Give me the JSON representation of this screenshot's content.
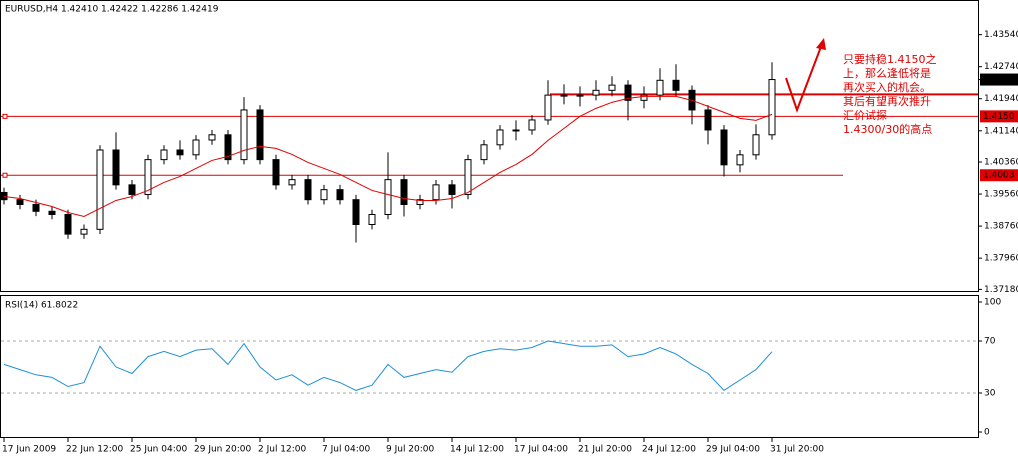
{
  "chart_data": {
    "type": "candlestick",
    "title": "EURUSD,H4  1.42410 1.42422 1.42286 1.42419",
    "categories": [
      "17 Jun 2009",
      null,
      null,
      null,
      "22 Jun 12:00",
      null,
      null,
      null,
      "25 Jun 04:00",
      null,
      null,
      null,
      "29 Jun 20:00",
      null,
      null,
      null,
      "2 Jul 12:00",
      null,
      null,
      null,
      "7 Jul 04:00",
      null,
      null,
      null,
      "9 Jul 20:00",
      null,
      null,
      null,
      "14 Jul 12:00",
      null,
      null,
      null,
      "17 Jul 04:00",
      null,
      null,
      null,
      "21 Jul 20:00",
      null,
      null,
      null,
      "24 Jul 12:00",
      null,
      null,
      null,
      "29 Jul 04:00",
      null,
      null,
      null,
      "31 Jul 20:00"
    ],
    "candles": [
      [
        1.396,
        1.3972,
        1.393,
        1.3942
      ],
      [
        1.3942,
        1.3954,
        1.3918,
        1.393
      ],
      [
        1.393,
        1.3942,
        1.3901,
        1.3913
      ],
      [
        1.3913,
        1.3925,
        1.3893,
        1.3905
      ],
      [
        1.3905,
        1.3917,
        1.3844,
        1.3856
      ],
      [
        1.3856,
        1.388,
        1.3844,
        1.3868
      ],
      [
        1.3868,
        1.4078,
        1.3856,
        1.4066
      ],
      [
        1.4066,
        1.411,
        1.3967,
        1.3979
      ],
      [
        1.3979,
        1.3991,
        1.3943,
        1.3955
      ],
      [
        1.3955,
        1.4054,
        1.3943,
        1.4042
      ],
      [
        1.4042,
        1.4078,
        1.403,
        1.4066
      ],
      [
        1.4066,
        1.409,
        1.4042,
        1.4054
      ],
      [
        1.4054,
        1.4103,
        1.4042,
        1.4091
      ],
      [
        1.4091,
        1.4116,
        1.4079,
        1.4104
      ],
      [
        1.4104,
        1.4116,
        1.403,
        1.4042
      ],
      [
        1.4042,
        1.4198,
        1.403,
        1.4166
      ],
      [
        1.4166,
        1.4178,
        1.403,
        1.4042
      ],
      [
        1.4042,
        1.4054,
        1.3967,
        1.3979
      ],
      [
        1.3979,
        1.4004,
        1.3967,
        1.3992
      ],
      [
        1.3992,
        1.4004,
        1.393,
        1.3942
      ],
      [
        1.3942,
        1.3979,
        1.393,
        1.3967
      ],
      [
        1.3967,
        1.3979,
        1.393,
        1.3942
      ],
      [
        1.3942,
        1.3954,
        1.3835,
        1.388
      ],
      [
        1.388,
        1.3917,
        1.3868,
        1.3905
      ],
      [
        1.3905,
        1.406,
        1.3893,
        1.3992
      ],
      [
        1.3992,
        1.4004,
        1.39,
        1.393
      ],
      [
        1.393,
        1.3954,
        1.3918,
        1.3942
      ],
      [
        1.3942,
        1.3991,
        1.393,
        1.3979
      ],
      [
        1.3979,
        1.3991,
        1.392,
        1.3955
      ],
      [
        1.3955,
        1.4054,
        1.3943,
        1.4042
      ],
      [
        1.4042,
        1.4091,
        1.403,
        1.4079
      ],
      [
        1.4079,
        1.4128,
        1.4067,
        1.4116
      ],
      [
        1.4116,
        1.414,
        1.409,
        1.4116
      ],
      [
        1.4116,
        1.4153,
        1.4104,
        1.4141
      ],
      [
        1.4141,
        1.424,
        1.4129,
        1.4203
      ],
      [
        1.4203,
        1.423,
        1.418,
        1.4203
      ],
      [
        1.4203,
        1.4225,
        1.4175,
        1.4203
      ],
      [
        1.4203,
        1.424,
        1.419,
        1.4215
      ],
      [
        1.4215,
        1.425,
        1.42,
        1.4228
      ],
      [
        1.4228,
        1.424,
        1.414,
        1.419
      ],
      [
        1.419,
        1.4225,
        1.417,
        1.4203
      ],
      [
        1.4203,
        1.427,
        1.419,
        1.424
      ],
      [
        1.424,
        1.428,
        1.42,
        1.4215
      ],
      [
        1.4215,
        1.4227,
        1.413,
        1.4166
      ],
      [
        1.4166,
        1.4178,
        1.408,
        1.4116
      ],
      [
        1.4116,
        1.4128,
        1.4,
        1.4029
      ],
      [
        1.4029,
        1.4066,
        1.401,
        1.4054
      ],
      [
        1.4054,
        1.413,
        1.4042,
        1.4104
      ],
      [
        1.4104,
        1.4285,
        1.4092,
        1.42419
      ]
    ],
    "ma": {
      "color": "#e00000",
      "values": [
        1.395,
        1.3945,
        1.3935,
        1.3925,
        1.391,
        1.39,
        1.392,
        1.394,
        1.395,
        1.3965,
        1.3985,
        1.4,
        1.402,
        1.404,
        1.405,
        1.4065,
        1.4075,
        1.407,
        1.4055,
        1.4035,
        1.402,
        1.4005,
        1.3985,
        1.3965,
        1.3955,
        1.3945,
        1.394,
        1.394,
        1.3945,
        1.396,
        1.3985,
        1.401,
        1.403,
        1.4055,
        1.409,
        1.412,
        1.415,
        1.417,
        1.4185,
        1.4195,
        1.42,
        1.42,
        1.42,
        1.419,
        1.4175,
        1.416,
        1.4145,
        1.414,
        1.4155
      ]
    },
    "current_price": {
      "value": 1.42419,
      "label": "1.42419"
    },
    "levels": [
      {
        "value": 1.415,
        "label": "1.4150"
      },
      {
        "value": 1.4003,
        "label": "1.4003"
      }
    ],
    "trend_line": 1.4205,
    "level_color": "#e00000",
    "ylim": [
      1.3714,
      1.4438
    ],
    "yticks": [
      {
        "value": 1.4354,
        "label": "1.43540"
      },
      {
        "value": 1.4274,
        "label": "1.42740"
      },
      {
        "value": 1.4194,
        "label": "1.41940"
      },
      {
        "value": 1.4114,
        "label": "1.41140"
      },
      {
        "value": 1.4036,
        "label": "1.40360"
      },
      {
        "value": 1.3956,
        "label": "1.39560"
      },
      {
        "value": 1.3876,
        "label": "1.38760"
      },
      {
        "value": 1.3796,
        "label": "1.37960"
      },
      {
        "value": 1.3718,
        "label": "1.37180"
      }
    ],
    "annotations": [
      "只要持稳1.4150之",
      "上，那么逢低将是",
      "再次买入的机会。",
      "其后有望再次推升",
      "汇价试探",
      "1.4300/30的高点"
    ],
    "rsi": {
      "title": "RSI(14) 61.8022",
      "color": "#1e90d8",
      "ylim": [
        0,
        100
      ],
      "yticks": [
        100,
        70,
        30,
        0
      ],
      "levels": [
        70,
        30
      ],
      "values": [
        52,
        48,
        44,
        42,
        35,
        38,
        66,
        50,
        45,
        58,
        62,
        58,
        63,
        64,
        52,
        68,
        50,
        40,
        44,
        36,
        42,
        38,
        32,
        36,
        52,
        42,
        45,
        48,
        46,
        58,
        62,
        64,
        63,
        65,
        70,
        68,
        66,
        66,
        67,
        58,
        60,
        65,
        60,
        52,
        45,
        32,
        40,
        48,
        61.8022
      ]
    }
  }
}
